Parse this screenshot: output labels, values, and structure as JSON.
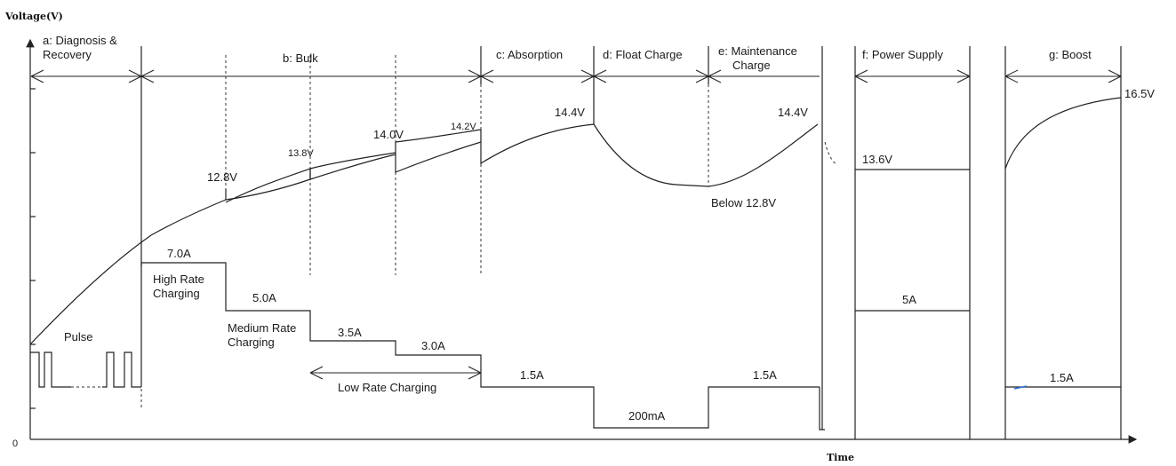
{
  "axes": {
    "y_label": "Voltage(V)",
    "x_label": "Time",
    "origin": "0"
  },
  "stages": [
    {
      "id": "a",
      "label_line1": "a: Diagnosis &",
      "label_line2": "Recovery"
    },
    {
      "id": "b",
      "label_line1": "b: Bulk"
    },
    {
      "id": "c",
      "label_line1": "c: Absorption"
    },
    {
      "id": "d",
      "label_line1": "d: Float Charge"
    },
    {
      "id": "e",
      "label_line1": "e: Maintenance",
      "label_line2": "Charge"
    },
    {
      "id": "f",
      "label_line1": "f: Power Supply"
    },
    {
      "id": "g",
      "label_line1": "g: Boost"
    }
  ],
  "voltage_labels": {
    "v1": "12.8V",
    "v2": "13.8V",
    "v3": "14.0V",
    "v4": "14.2V",
    "v5": "14.4V",
    "v6": "Below 12.8V",
    "v7": "14.4V",
    "v8": "13.6V",
    "v9": "16.5V"
  },
  "current_labels": {
    "pulse": "Pulse",
    "i_high": "7.0A",
    "high_line1": "High Rate",
    "high_line2": "Charging",
    "i_medium": "5.0A",
    "medium_line1": "Medium Rate",
    "medium_line2": "Charging",
    "i_low1": "3.5A",
    "i_low2": "3.0A",
    "low_rate": "Low Rate Charging",
    "i_abs": "1.5A",
    "i_float": "200mA",
    "i_maint": "1.5A",
    "i_ps": "5A",
    "i_boost": "1.5A"
  },
  "colors": {
    "line": "#222222",
    "background": "#ffffff",
    "mark": "#2a6fd6"
  }
}
